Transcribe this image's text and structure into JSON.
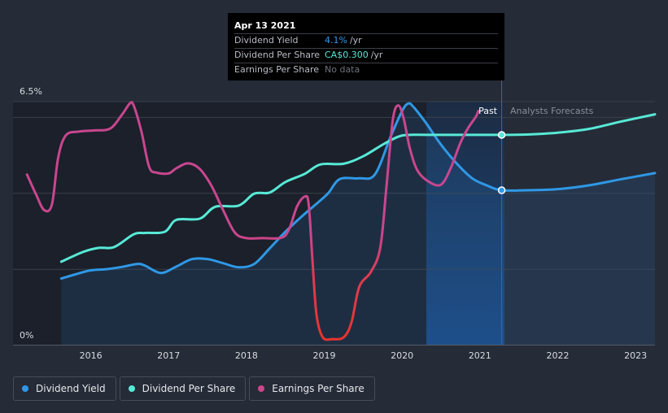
{
  "tooltip": {
    "date": "Apr 13 2021",
    "rows": [
      {
        "label": "Dividend Yield",
        "value": "4.1%",
        "unit": "/yr",
        "color": "#2f98e6"
      },
      {
        "label": "Dividend Per Share",
        "value": "CA$0.300",
        "unit": "/yr",
        "color": "#57e9d6"
      },
      {
        "label": "Earnings Per Share",
        "value": "No data",
        "unit": "",
        "color": "#6e737c"
      }
    ]
  },
  "legend": [
    {
      "label": "Dividend Yield",
      "color": "#2f98e6"
    },
    {
      "label": "Dividend Per Share",
      "color": "#57e9d6"
    },
    {
      "label": "Earnings Per Share",
      "color": "#d0458c"
    }
  ],
  "chart_data": {
    "type": "line",
    "y_top_label": "6.5%",
    "y_bottom_label": "0%",
    "y_range": [
      0,
      6.5
    ],
    "x_range": [
      2015.0,
      2023.25
    ],
    "x_ticks": [
      "2016",
      "2017",
      "2018",
      "2019",
      "2020",
      "2021",
      "2022",
      "2023"
    ],
    "past_label": "Past",
    "forecast_label": "Analysts Forecasts",
    "forecast_start": 2021.28,
    "highlight_range": [
      2020.28,
      2021.28
    ],
    "marker_date": 2021.28,
    "series": [
      {
        "name": "Dividend Yield",
        "color": "#2f98e6",
        "fill": true,
        "points": [
          [
            2015.62,
            1.77
          ],
          [
            2015.8,
            1.88
          ],
          [
            2016.0,
            1.99
          ],
          [
            2016.2,
            2.02
          ],
          [
            2016.4,
            2.08
          ],
          [
            2016.6,
            2.16
          ],
          [
            2016.7,
            2.11
          ],
          [
            2016.9,
            1.92
          ],
          [
            2017.1,
            2.09
          ],
          [
            2017.3,
            2.29
          ],
          [
            2017.5,
            2.29
          ],
          [
            2017.7,
            2.18
          ],
          [
            2017.9,
            2.07
          ],
          [
            2018.1,
            2.16
          ],
          [
            2018.3,
            2.58
          ],
          [
            2018.5,
            3.02
          ],
          [
            2018.7,
            3.41
          ],
          [
            2018.9,
            3.77
          ],
          [
            2019.05,
            4.05
          ],
          [
            2019.2,
            4.43
          ],
          [
            2019.45,
            4.45
          ],
          [
            2019.65,
            4.55
          ],
          [
            2019.85,
            5.55
          ],
          [
            2020.0,
            6.25
          ],
          [
            2020.08,
            6.45
          ],
          [
            2020.15,
            6.35
          ],
          [
            2020.3,
            5.95
          ],
          [
            2020.5,
            5.35
          ],
          [
            2020.7,
            4.85
          ],
          [
            2020.9,
            4.45
          ],
          [
            2021.1,
            4.25
          ],
          [
            2021.28,
            4.13
          ],
          [
            2021.6,
            4.13
          ],
          [
            2022.0,
            4.16
          ],
          [
            2022.4,
            4.26
          ],
          [
            2022.8,
            4.42
          ],
          [
            2023.25,
            4.59
          ]
        ]
      },
      {
        "name": "Dividend Per Share",
        "color": "#57e9d6",
        "fill": false,
        "points": [
          [
            2015.62,
            2.22
          ],
          [
            2015.9,
            2.48
          ],
          [
            2016.1,
            2.59
          ],
          [
            2016.3,
            2.61
          ],
          [
            2016.55,
            2.95
          ],
          [
            2016.7,
            2.99
          ],
          [
            2016.95,
            3.02
          ],
          [
            2017.1,
            3.34
          ],
          [
            2017.4,
            3.37
          ],
          [
            2017.6,
            3.69
          ],
          [
            2017.9,
            3.72
          ],
          [
            2018.1,
            4.04
          ],
          [
            2018.3,
            4.07
          ],
          [
            2018.5,
            4.35
          ],
          [
            2018.75,
            4.57
          ],
          [
            2018.95,
            4.82
          ],
          [
            2019.25,
            4.84
          ],
          [
            2019.5,
            5.04
          ],
          [
            2019.75,
            5.35
          ],
          [
            2019.95,
            5.56
          ],
          [
            2020.1,
            5.61
          ],
          [
            2020.5,
            5.61
          ],
          [
            2021.28,
            5.61
          ],
          [
            2021.6,
            5.62
          ],
          [
            2022.0,
            5.67
          ],
          [
            2022.4,
            5.77
          ],
          [
            2022.8,
            5.96
          ],
          [
            2023.25,
            6.16
          ]
        ]
      },
      {
        "name": "Earnings Per Share",
        "color": "#d0458c",
        "fill": false,
        "points": [
          [
            2015.18,
            4.55
          ],
          [
            2015.3,
            4.0
          ],
          [
            2015.4,
            3.6
          ],
          [
            2015.5,
            3.75
          ],
          [
            2015.58,
            5.0
          ],
          [
            2015.68,
            5.6
          ],
          [
            2015.85,
            5.7
          ],
          [
            2016.05,
            5.73
          ],
          [
            2016.25,
            5.78
          ],
          [
            2016.4,
            6.15
          ],
          [
            2016.5,
            6.45
          ],
          [
            2016.55,
            6.4
          ],
          [
            2016.65,
            5.7
          ],
          [
            2016.75,
            4.75
          ],
          [
            2016.85,
            4.6
          ],
          [
            2017.0,
            4.58
          ],
          [
            2017.1,
            4.72
          ],
          [
            2017.25,
            4.85
          ],
          [
            2017.4,
            4.7
          ],
          [
            2017.55,
            4.25
          ],
          [
            2017.7,
            3.6
          ],
          [
            2017.85,
            3.0
          ],
          [
            2018.0,
            2.85
          ],
          [
            2018.2,
            2.85
          ],
          [
            2018.45,
            2.86
          ],
          [
            2018.55,
            3.1
          ],
          [
            2018.65,
            3.7
          ],
          [
            2018.75,
            3.96
          ],
          [
            2018.8,
            3.75
          ],
          [
            2018.85,
            2.2
          ],
          [
            2018.9,
            0.8
          ],
          [
            2018.98,
            0.2
          ],
          [
            2019.1,
            0.15
          ],
          [
            2019.25,
            0.2
          ],
          [
            2019.35,
            0.6
          ],
          [
            2019.45,
            1.55
          ],
          [
            2019.6,
            1.95
          ],
          [
            2019.72,
            2.6
          ],
          [
            2019.8,
            4.25
          ],
          [
            2019.88,
            6.0
          ],
          [
            2019.95,
            6.4
          ],
          [
            2020.02,
            6.05
          ],
          [
            2020.1,
            5.25
          ],
          [
            2020.2,
            4.65
          ],
          [
            2020.35,
            4.35
          ],
          [
            2020.5,
            4.28
          ],
          [
            2020.62,
            4.7
          ],
          [
            2020.75,
            5.4
          ],
          [
            2020.85,
            5.8
          ],
          [
            2020.95,
            6.1
          ],
          [
            2020.98,
            6.25
          ]
        ]
      }
    ]
  }
}
